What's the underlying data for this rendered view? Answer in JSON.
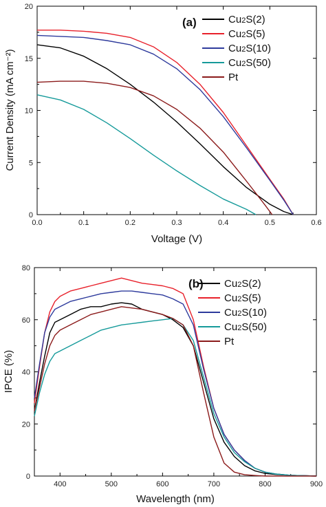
{
  "chart_data": [
    {
      "type": "line",
      "panel_label": "(a)",
      "xlabel": "Voltage (V)",
      "ylabel": "Current Density (mA cm⁻²)",
      "xlim": [
        0.0,
        0.6
      ],
      "ylim": [
        0,
        20
      ],
      "xticks": [
        "0.0",
        "0.1",
        "0.2",
        "0.3",
        "0.4",
        "0.5",
        "0.6"
      ],
      "yticks": [
        "0",
        "5",
        "10",
        "15",
        "20"
      ],
      "legend_position": "top-right",
      "series": [
        {
          "name": "Cu2S(2)",
          "color": "#000000",
          "x": [
            0.0,
            0.05,
            0.1,
            0.15,
            0.2,
            0.25,
            0.3,
            0.35,
            0.4,
            0.45,
            0.5,
            0.53,
            0.55
          ],
          "y": [
            16.3,
            16.0,
            15.2,
            14.0,
            12.5,
            10.8,
            8.9,
            6.8,
            4.6,
            2.6,
            1.0,
            0.3,
            0.0
          ]
        },
        {
          "name": "Cu2S(5)",
          "color": "#e8202a",
          "x": [
            0.0,
            0.05,
            0.1,
            0.15,
            0.2,
            0.25,
            0.3,
            0.35,
            0.4,
            0.45,
            0.5,
            0.53,
            0.55
          ],
          "y": [
            17.7,
            17.7,
            17.6,
            17.4,
            17.0,
            16.1,
            14.6,
            12.5,
            9.8,
            6.6,
            3.4,
            1.5,
            0.0
          ]
        },
        {
          "name": "Cu2S(10)",
          "color": "#2d3a9c",
          "x": [
            0.0,
            0.05,
            0.1,
            0.15,
            0.2,
            0.25,
            0.3,
            0.35,
            0.4,
            0.45,
            0.5,
            0.53,
            0.55
          ],
          "y": [
            17.2,
            17.1,
            17.0,
            16.7,
            16.3,
            15.4,
            14.0,
            12.0,
            9.4,
            6.4,
            3.3,
            1.4,
            0.0
          ]
        },
        {
          "name": "Cu2S(50)",
          "color": "#159a9a",
          "x": [
            0.0,
            0.05,
            0.1,
            0.15,
            0.2,
            0.25,
            0.3,
            0.35,
            0.4,
            0.45,
            0.47
          ],
          "y": [
            11.5,
            11.0,
            10.1,
            8.8,
            7.3,
            5.7,
            4.2,
            2.8,
            1.5,
            0.5,
            0.0
          ]
        },
        {
          "name": "Pt",
          "color": "#8b1a1a",
          "x": [
            0.0,
            0.05,
            0.1,
            0.15,
            0.2,
            0.25,
            0.3,
            0.35,
            0.4,
            0.45,
            0.49,
            0.505
          ],
          "y": [
            12.7,
            12.8,
            12.8,
            12.6,
            12.2,
            11.4,
            10.1,
            8.3,
            6.0,
            3.2,
            0.9,
            0.0
          ]
        }
      ]
    },
    {
      "type": "line",
      "panel_label": "(b)",
      "xlabel": "Wavelength (nm)",
      "ylabel": "IPCE (%)",
      "xlim": [
        350,
        900
      ],
      "ylim": [
        0,
        80
      ],
      "xticks": [
        "400",
        "500",
        "600",
        "700",
        "800",
        "900"
      ],
      "yticks": [
        "0",
        "20",
        "40",
        "60",
        "80"
      ],
      "legend_position": "top-right",
      "series": [
        {
          "name": "Cu2S(2)",
          "color": "#000000",
          "x": [
            350,
            360,
            370,
            380,
            390,
            400,
            420,
            440,
            460,
            480,
            500,
            520,
            540,
            560,
            580,
            600,
            620,
            640,
            660,
            680,
            700,
            720,
            740,
            760,
            780,
            800,
            820,
            850,
            900
          ],
          "y": [
            25,
            36,
            46,
            55,
            59,
            60,
            62,
            64,
            65,
            65,
            66,
            66.5,
            66,
            64,
            63,
            62,
            60,
            57,
            50,
            36,
            22,
            13,
            7.5,
            4,
            2,
            1,
            0.6,
            0.3,
            0
          ]
        },
        {
          "name": "Cu2S(5)",
          "color": "#e8202a",
          "x": [
            350,
            360,
            370,
            380,
            390,
            400,
            420,
            440,
            460,
            480,
            500,
            520,
            540,
            560,
            580,
            600,
            620,
            640,
            660,
            680,
            700,
            720,
            740,
            760,
            780,
            800,
            820,
            850,
            900
          ],
          "y": [
            28,
            42,
            55,
            63,
            67,
            69,
            71,
            72,
            73,
            74,
            75,
            76,
            75,
            74,
            73.5,
            73,
            72,
            70,
            60,
            42,
            26,
            16,
            10,
            6,
            3,
            1.5,
            0.8,
            0.3,
            0
          ]
        },
        {
          "name": "Cu2S(10)",
          "color": "#2d3a9c",
          "x": [
            350,
            360,
            370,
            380,
            390,
            400,
            420,
            440,
            460,
            480,
            500,
            520,
            540,
            560,
            580,
            600,
            620,
            640,
            660,
            680,
            700,
            720,
            740,
            760,
            780,
            800,
            820,
            850,
            900
          ],
          "y": [
            30,
            43,
            55,
            61,
            64,
            65,
            67,
            68,
            69,
            70,
            70.5,
            71,
            71,
            70.5,
            70,
            69.5,
            68,
            66,
            58,
            41,
            26,
            16,
            10,
            6,
            3,
            1.5,
            0.8,
            0.3,
            0
          ]
        },
        {
          "name": "Cu2S(50)",
          "color": "#159a9a",
          "x": [
            350,
            360,
            370,
            380,
            390,
            400,
            420,
            440,
            460,
            480,
            500,
            520,
            540,
            560,
            580,
            600,
            620,
            640,
            660,
            680,
            700,
            720,
            740,
            760,
            780,
            800,
            820,
            850,
            900
          ],
          "y": [
            23,
            32,
            39,
            44,
            47,
            48,
            50,
            52,
            54,
            56,
            57,
            58,
            58.5,
            59,
            59.5,
            60,
            60.5,
            58,
            52,
            38,
            24,
            15,
            9,
            5.5,
            3,
            1.5,
            0.8,
            0.3,
            0
          ]
        },
        {
          "name": "Pt",
          "color": "#8b1a1a",
          "x": [
            350,
            360,
            370,
            380,
            390,
            400,
            420,
            440,
            460,
            480,
            500,
            520,
            540,
            560,
            580,
            600,
            620,
            640,
            660,
            680,
            700,
            720,
            740,
            760,
            780,
            800,
            850,
            900
          ],
          "y": [
            25,
            34,
            43,
            50,
            54,
            56,
            58,
            60,
            62,
            63,
            64,
            65,
            64.5,
            64,
            63,
            62,
            60.5,
            58,
            50,
            32,
            15,
            5,
            1.5,
            0.5,
            0.2,
            0,
            0,
            0
          ]
        }
      ]
    }
  ]
}
